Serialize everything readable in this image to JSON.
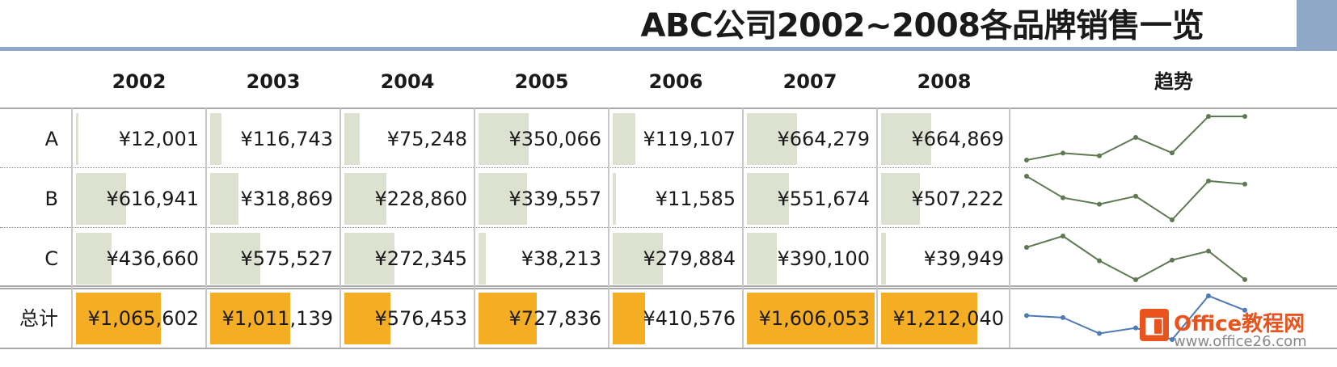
{
  "title": "ABC公司2002~2008各品牌销售一览",
  "columns": [
    "2002",
    "2003",
    "2004",
    "2005",
    "2006",
    "2007",
    "2008"
  ],
  "trend_header": "趋势",
  "rows": [
    {
      "label": "A",
      "display": [
        "¥12,001",
        "¥116,743",
        "¥75,248",
        "¥350,066",
        "¥119,107",
        "¥664,279",
        "¥664,869"
      ]
    },
    {
      "label": "B",
      "display": [
        "¥616,941",
        "¥318,869",
        "¥228,860",
        "¥339,557",
        "¥11,585",
        "¥551,674",
        "¥507,222"
      ]
    },
    {
      "label": "C",
      "display": [
        "¥436,660",
        "¥575,527",
        "¥272,345",
        "¥38,213",
        "¥279,884",
        "¥390,100",
        "¥39,949"
      ]
    }
  ],
  "total_row": {
    "label": "总计",
    "display": [
      "¥1,065,602",
      "¥1,011,139",
      "¥576,453",
      "¥727,836",
      "¥410,576",
      "¥1,606,053",
      "¥1,212,040"
    ]
  },
  "colors": {
    "bar": "#dde1d0",
    "total_bar": "#f5ae24",
    "sparkline": "#5f7a52",
    "total_sparkline": "#4d7ab5",
    "title_accent": "#8fa8c8"
  },
  "watermark": {
    "brand": "Office教程网",
    "url": "www.office26.com"
  },
  "chart_data": {
    "type": "table",
    "title": "ABC公司2002~2008各品牌销售一览",
    "categories": [
      "2002",
      "2003",
      "2004",
      "2005",
      "2006",
      "2007",
      "2008"
    ],
    "series": [
      {
        "name": "A",
        "values": [
          12001,
          116743,
          75248,
          350066,
          119107,
          664279,
          664869
        ]
      },
      {
        "name": "B",
        "values": [
          616941,
          318869,
          228860,
          339557,
          11585,
          551674,
          507222
        ]
      },
      {
        "name": "C",
        "values": [
          436660,
          575527,
          272345,
          38213,
          279884,
          390100,
          39949
        ]
      },
      {
        "name": "总计",
        "values": [
          1065602,
          1011139,
          576453,
          727836,
          410576,
          1606053,
          1212040
        ]
      }
    ],
    "databars": true,
    "sparklines": true
  }
}
